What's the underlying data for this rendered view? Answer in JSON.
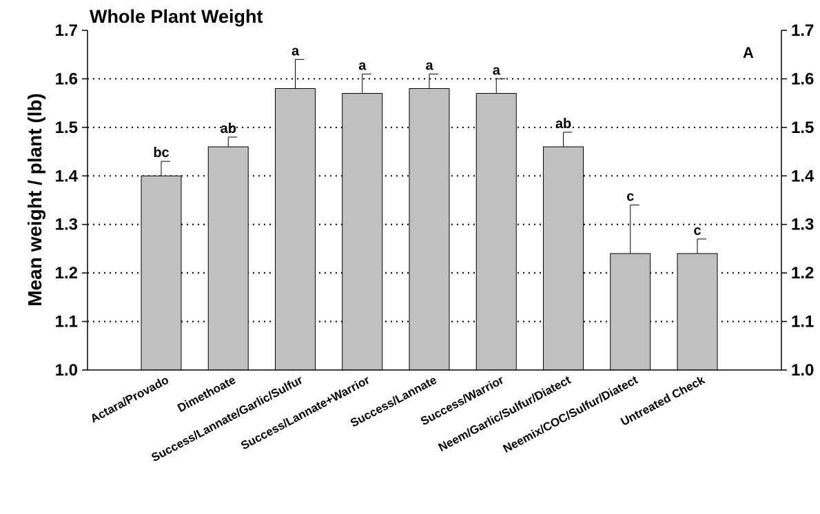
{
  "chart_data": {
    "type": "bar",
    "title": "Whole Plant  Weight",
    "ylabel": "Mean weight / plant   (lb)",
    "xlabel": "",
    "panel_label": "A",
    "ylim": [
      1.0,
      1.7
    ],
    "yticks": [
      "1.0",
      "1.1",
      "1.2",
      "1.3",
      "1.4",
      "1.5",
      "1.6",
      "1.7"
    ],
    "grid": "horizontal dotted",
    "bar_color": "#c0c0c0",
    "categories": [
      "Actara/Provado",
      "Dimethoate",
      "Success/Lannate/Garlic/Sulfur",
      "Success/Lannate+Warrior",
      "Success/Lannate",
      "Success/Warrior",
      "Neem/Garlic/Sulfur/Diatect",
      "Neemix/COC/Sulfur/Diatect",
      "Untreated Check"
    ],
    "values": [
      1.4,
      1.46,
      1.58,
      1.57,
      1.58,
      1.57,
      1.46,
      1.24,
      1.24
    ],
    "error_upper": [
      1.43,
      1.48,
      1.64,
      1.61,
      1.61,
      1.6,
      1.49,
      1.34,
      1.27
    ],
    "significance": [
      "bc",
      "ab",
      "a",
      "a",
      "a",
      "a",
      "ab",
      "c",
      "c"
    ]
  }
}
